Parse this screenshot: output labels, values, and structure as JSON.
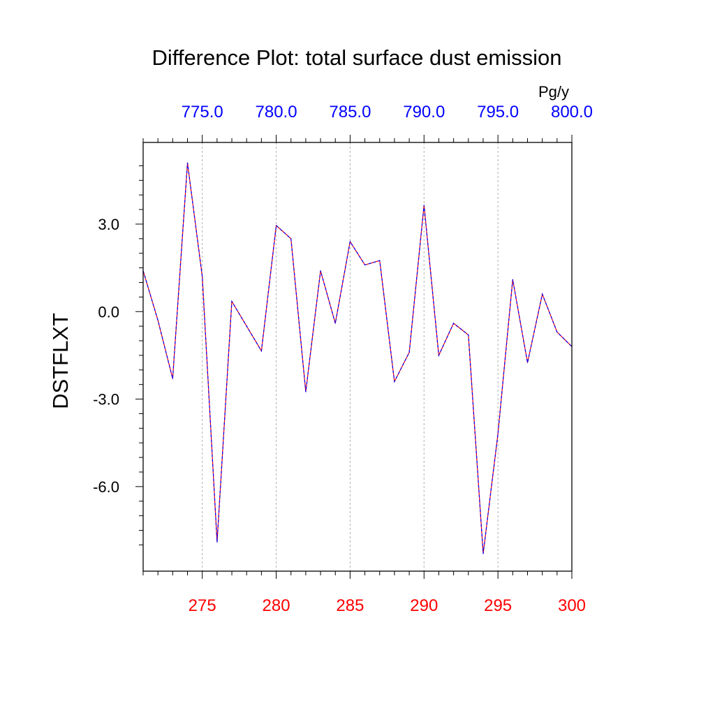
{
  "chart_data": {
    "type": "line",
    "title": "Difference Plot: total surface dust emission",
    "ylabel": "DSTFLXT",
    "top_axis_unit": "Pg/y",
    "xlim": [
      271,
      300
    ],
    "ylim": [
      -8.9,
      5.8
    ],
    "bottom_ticks": [
      {
        "value": 275,
        "label": "275"
      },
      {
        "value": 280,
        "label": "280"
      },
      {
        "value": 285,
        "label": "285"
      },
      {
        "value": 290,
        "label": "290"
      },
      {
        "value": 295,
        "label": "295"
      },
      {
        "value": 300,
        "label": "300"
      }
    ],
    "top_ticks": [
      {
        "value": 275,
        "label": "775.0"
      },
      {
        "value": 280,
        "label": "780.0"
      },
      {
        "value": 285,
        "label": "785.0"
      },
      {
        "value": 290,
        "label": "790.0"
      },
      {
        "value": 295,
        "label": "795.0"
      },
      {
        "value": 300,
        "label": "800.0"
      }
    ],
    "y_ticks": [
      {
        "value": 3,
        "label": "3.0"
      },
      {
        "value": 0,
        "label": "0.0"
      },
      {
        "value": -3,
        "label": "-3.0"
      },
      {
        "value": -6,
        "label": "-6.0"
      }
    ],
    "grid": "vertical dashed at major x ticks",
    "colors": {
      "line_a": "#ff0000",
      "line_b": "#0000ff",
      "bottom_ticks": "#ff0000",
      "top_ticks": "#0000ff"
    },
    "x": [
      271,
      272,
      273,
      274,
      275,
      276,
      277,
      278,
      279,
      280,
      281,
      282,
      283,
      284,
      285,
      286,
      287,
      288,
      289,
      290,
      291,
      292,
      293,
      294,
      295,
      296,
      297,
      298,
      299,
      300
    ],
    "y": [
      1.4,
      -0.3,
      -2.3,
      5.1,
      1.2,
      -7.9,
      0.35,
      -0.5,
      -1.35,
      2.95,
      2.5,
      -2.75,
      1.4,
      -0.4,
      2.4,
      1.6,
      1.75,
      -2.4,
      -1.4,
      3.65,
      -1.5,
      -0.4,
      -0.8,
      -8.3,
      -4.2,
      1.1,
      -1.75,
      0.6,
      -0.7,
      -1.2
    ]
  }
}
